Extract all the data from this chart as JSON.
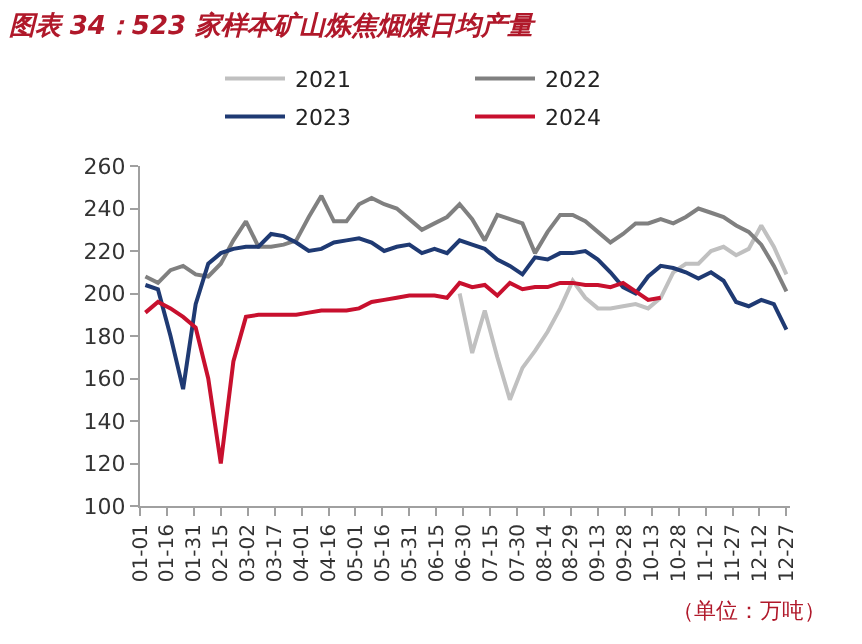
{
  "chart_data": {
    "type": "line",
    "title": "图表 34：523 家样本矿山炼焦烟煤日均产量",
    "annotations": [
      "（单位：万吨）"
    ],
    "x": [
      "--01-04",
      "--01-11",
      "--01-18",
      "--01-25",
      "--02-01",
      "--02-08",
      "--02-15",
      "--02-22",
      "--03-01",
      "--03-08",
      "--03-15",
      "--03-22",
      "--03-29",
      "--04-05",
      "--04-12",
      "--04-19",
      "--04-26",
      "--05-03",
      "--05-10",
      "--05-17",
      "--05-24",
      "--05-31",
      "--06-07",
      "--06-14",
      "--06-21",
      "--06-28",
      "--07-05",
      "--07-12",
      "--07-19",
      "--07-26",
      "--08-02",
      "--08-09",
      "--08-16",
      "--08-23",
      "--08-30",
      "--09-06",
      "--09-13",
      "--09-20",
      "--09-27",
      "--10-04",
      "--10-11",
      "--10-18",
      "--10-25",
      "--11-01",
      "--11-08",
      "--11-15",
      "--11-22",
      "--11-29",
      "--12-06",
      "--12-13",
      "--12-20",
      "--12-27"
    ],
    "series": [
      {
        "name": "2021",
        "color": "#c0c0c0",
        "values": [
          null,
          null,
          null,
          null,
          null,
          null,
          null,
          null,
          null,
          null,
          null,
          null,
          null,
          null,
          null,
          null,
          null,
          null,
          null,
          null,
          null,
          null,
          null,
          null,
          null,
          200,
          172,
          192,
          170,
          150,
          165,
          173,
          182,
          193,
          206,
          198,
          193,
          193,
          194,
          195,
          193,
          198,
          210,
          214,
          214,
          220,
          222,
          218,
          221,
          232,
          222,
          209
        ]
      },
      {
        "name": "2022",
        "color": "#808080",
        "values": [
          208,
          205,
          211,
          213,
          209,
          208,
          214,
          225,
          234,
          222,
          222,
          223,
          225,
          236,
          246,
          234,
          234,
          242,
          245,
          242,
          240,
          235,
          230,
          233,
          236,
          242,
          235,
          225,
          237,
          235,
          233,
          219,
          229,
          237,
          237,
          234,
          229,
          224,
          228,
          233,
          233,
          235,
          233,
          236,
          240,
          238,
          236,
          232,
          229,
          223,
          213,
          201
        ]
      },
      {
        "name": "2023",
        "color": "#1f3a73",
        "values": [
          204,
          202,
          180,
          155,
          195,
          214,
          219,
          221,
          222,
          222,
          228,
          227,
          224,
          220,
          221,
          224,
          225,
          226,
          224,
          220,
          222,
          223,
          219,
          221,
          219,
          225,
          223,
          221,
          216,
          213,
          209,
          217,
          216,
          219,
          219,
          220,
          216,
          210,
          203,
          200,
          208,
          213,
          212,
          210,
          207,
          210,
          206,
          196,
          194,
          197,
          195,
          183
        ]
      },
      {
        "name": "2024",
        "color": "#c8102e",
        "values": [
          191,
          196,
          193,
          189,
          184,
          160,
          120,
          168,
          189,
          190,
          190,
          190,
          190,
          191,
          192,
          192,
          192,
          193,
          196,
          197,
          198,
          199,
          199,
          199,
          198,
          205,
          203,
          204,
          199,
          205,
          202,
          203,
          203,
          205,
          205,
          204,
          204,
          203,
          205,
          201,
          197,
          198,
          null,
          null,
          null,
          null,
          null,
          null,
          null,
          null,
          null,
          null
        ]
      }
    ],
    "xlim": [
      "--01-01",
      "--12-29"
    ],
    "xticks": [
      {
        "value": "--01-01",
        "label": "01-01"
      },
      {
        "value": "--01-16",
        "label": "01-16"
      },
      {
        "value": "--01-31",
        "label": "01-31"
      },
      {
        "value": "--02-15",
        "label": "02-15"
      },
      {
        "value": "--03-02",
        "label": "03-02"
      },
      {
        "value": "--03-17",
        "label": "03-17"
      },
      {
        "value": "--04-01",
        "label": "04-01"
      },
      {
        "value": "--04-16",
        "label": "04-16"
      },
      {
        "value": "--05-01",
        "label": "05-01"
      },
      {
        "value": "--05-16",
        "label": "05-16"
      },
      {
        "value": "--05-31",
        "label": "05-31"
      },
      {
        "value": "--06-15",
        "label": "06-15"
      },
      {
        "value": "--06-30",
        "label": "06-30"
      },
      {
        "value": "--07-15",
        "label": "07-15"
      },
      {
        "value": "--07-30",
        "label": "07-30"
      },
      {
        "value": "--08-14",
        "label": "08-14"
      },
      {
        "value": "--08-29",
        "label": "08-29"
      },
      {
        "value": "--09-13",
        "label": "09-13"
      },
      {
        "value": "--09-28",
        "label": "09-28"
      },
      {
        "value": "--10-13",
        "label": "10-13"
      },
      {
        "value": "--10-28",
        "label": "10-28"
      },
      {
        "value": "--11-12",
        "label": "11-12"
      },
      {
        "value": "--11-27",
        "label": "11-27"
      },
      {
        "value": "--12-12",
        "label": "12-12"
      },
      {
        "value": "--12-27",
        "label": "12-27"
      }
    ],
    "ylim": [
      100,
      260
    ],
    "yticks": [
      100,
      120,
      140,
      160,
      180,
      200,
      220,
      240,
      260
    ],
    "legend": "top",
    "marker": "none",
    "line_style": "solid"
  }
}
